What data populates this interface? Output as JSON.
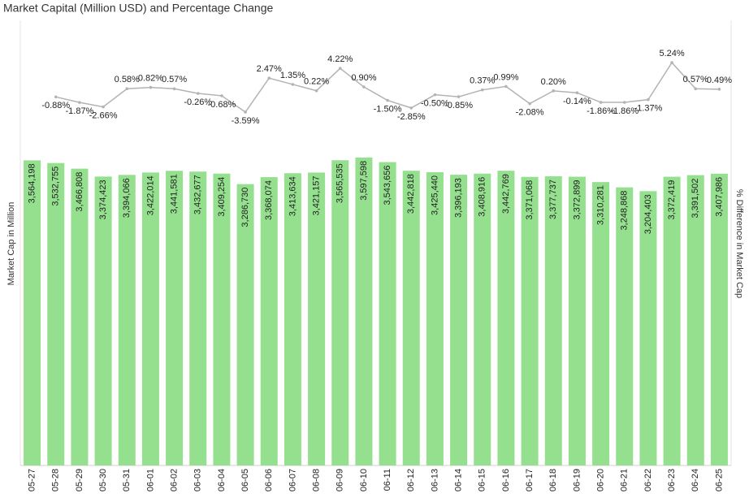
{
  "chart_data": {
    "type": "combo",
    "title": "Market Capital (Million USD) and Percentage Change",
    "y_label": "Market Cap in Million",
    "y2_label": "% Difference in Market Cap",
    "categories": [
      "05-27",
      "05-28",
      "05-29",
      "05-30",
      "05-31",
      "06-01",
      "06-02",
      "06-03",
      "06-04",
      "06-05",
      "06-06",
      "06-07",
      "06-08",
      "06-09",
      "06-10",
      "06-11",
      "06-12",
      "06-13",
      "06-14",
      "06-15",
      "06-16",
      "06-17",
      "06-18",
      "06-19",
      "06-20",
      "06-21",
      "06-22",
      "06-23",
      "06-24",
      "06-25"
    ],
    "ylim": [
      0,
      5200000
    ],
    "y2lim": [
      -66.7,
      12.8
    ],
    "series": [
      {
        "type": "bar",
        "color": "#95e08f",
        "values": [
          3564198,
          3532755,
          3466808,
          3374423,
          3394066,
          3422014,
          3441581,
          3432677,
          3409254,
          3286730,
          3368074,
          3413634,
          3421157,
          3565535,
          3597598,
          3543656,
          3442818,
          3425440,
          3396193,
          3408916,
          3442769,
          3371068,
          3377737,
          3372899,
          3310281,
          3248868,
          3204403,
          3372419,
          3391502,
          3407986
        ],
        "value_labels": [
          "3,564,198",
          "3,532,755",
          "3,466,808",
          "3,374,423",
          "3,394,066",
          "3,422,014",
          "3,441,581",
          "3,432,677",
          "3,409,254",
          "3,286,730",
          "3,368,074",
          "3,413,634",
          "3,421,157",
          "3,565,535",
          "3,597,598",
          "3,543,656",
          "3,442,818",
          "3,425,440",
          "3,396,193",
          "3,408,916",
          "3,442,769",
          "3,371,068",
          "3,377,737",
          "3,372,899",
          "3,310,281",
          "3,248,868",
          "3,204,403",
          "3,372,419",
          "3,391,502",
          "3,407,986"
        ]
      },
      {
        "type": "line",
        "axis": "y2",
        "color": "#b3b3b3",
        "values": [
          null,
          -0.88,
          -1.87,
          -2.66,
          0.58,
          0.82,
          0.57,
          -0.26,
          -0.68,
          -3.59,
          2.47,
          1.35,
          0.22,
          4.22,
          0.9,
          -1.5,
          -2.85,
          -0.5,
          -0.85,
          0.37,
          0.99,
          -2.08,
          0.2,
          -0.14,
          -1.86,
          -1.86,
          -1.37,
          5.24,
          0.57,
          0.49
        ],
        "value_labels": [
          null,
          "-0.88%",
          "-1.87%",
          "-2.66%",
          "0.58%",
          "0.82%",
          "0.57%",
          "-0.26%",
          "-0.68%",
          "-3.59%",
          "2.47%",
          "1.35%",
          "0.22%",
          "4.22%",
          "0.90%",
          "-1.50%",
          "-2.85%",
          "-0.50%",
          "-0.85%",
          "0.37%",
          "0.99%",
          "-2.08%",
          "0.20%",
          "-0.14%",
          "-1.86%",
          "-1.86%",
          "-1.37%",
          "5.24%",
          "0.57%",
          "0.49%"
        ]
      }
    ]
  }
}
